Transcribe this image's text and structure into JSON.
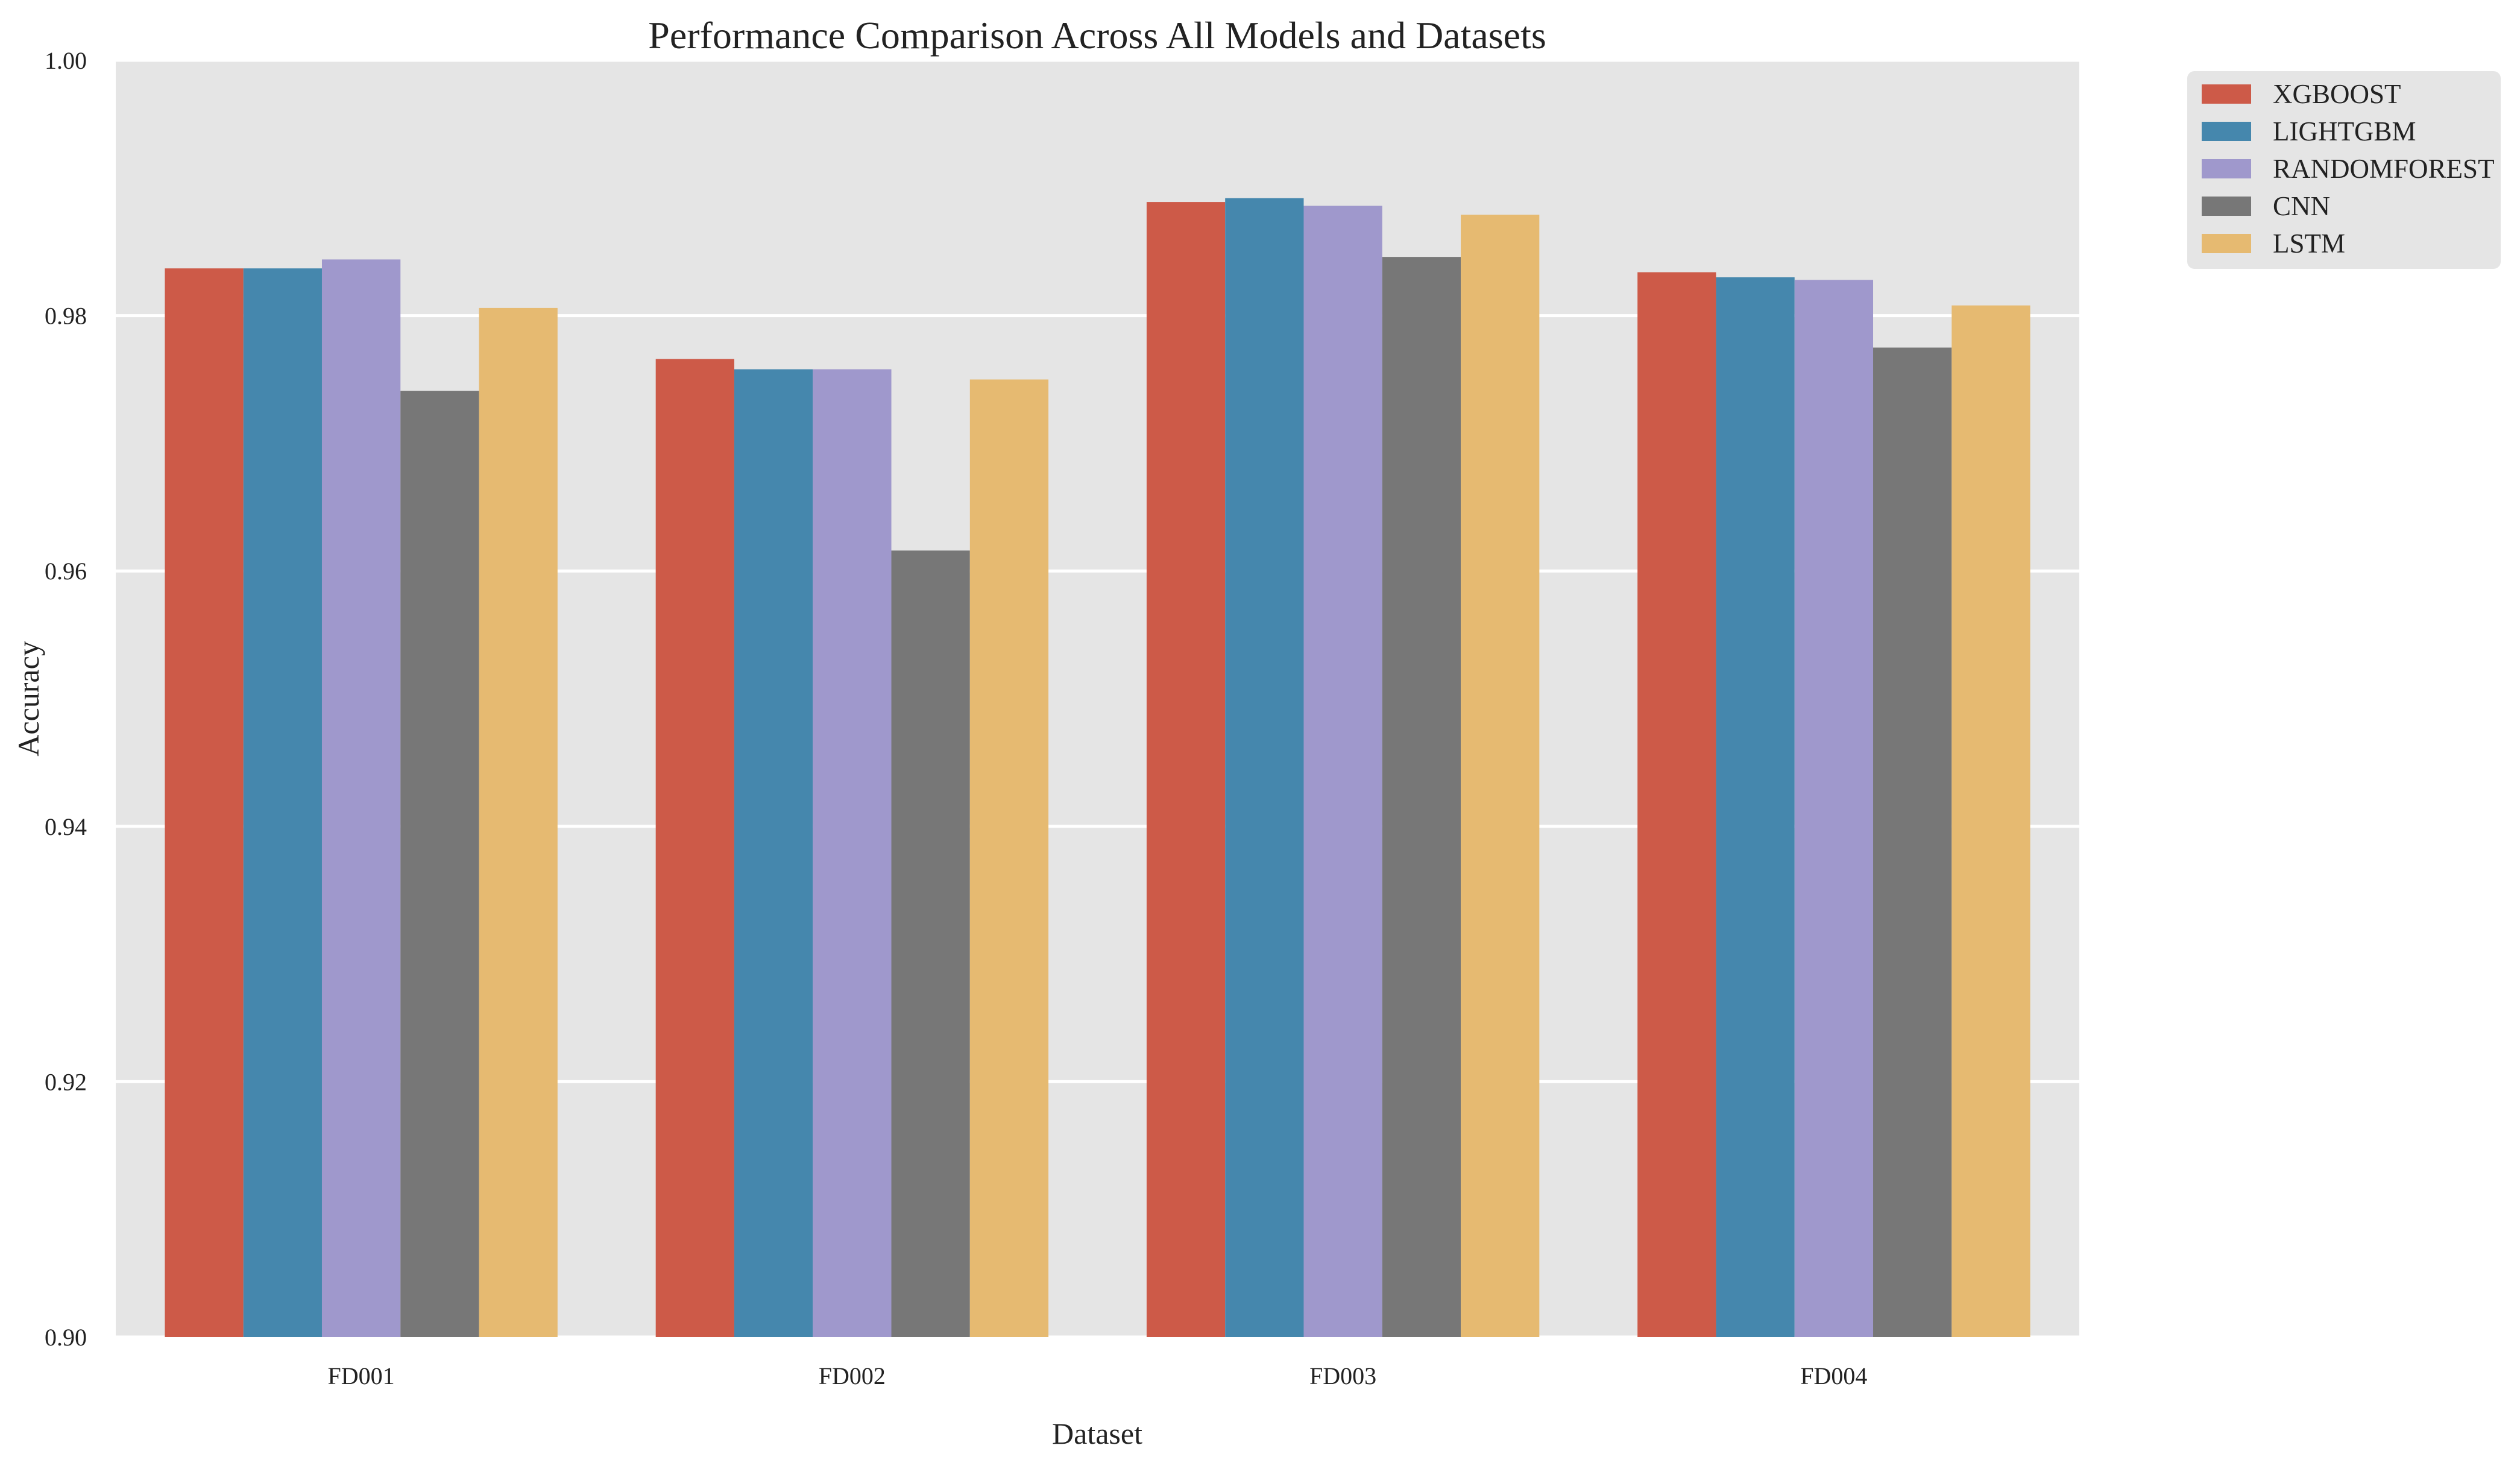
{
  "chart_data": {
    "type": "bar",
    "title": "Performance Comparison Across All Models and Datasets",
    "xlabel": "Dataset",
    "ylabel": "Accuracy",
    "categories": [
      "FD001",
      "FD002",
      "FD003",
      "FD004"
    ],
    "ylim": [
      0.9,
      1.0
    ],
    "yticks": [
      "0.90",
      "0.92",
      "0.94",
      "0.96",
      "0.98",
      "1.00"
    ],
    "grid": true,
    "legend_position": "outside top-right",
    "background": "#e5e5e5",
    "series": [
      {
        "name": "XGBOOST",
        "color": "#cd5a48",
        "values": [
          0.9837,
          0.9766,
          0.9889,
          0.9834
        ]
      },
      {
        "name": "LIGHTGBM",
        "color": "#4587ad",
        "values": [
          0.9837,
          0.9758,
          0.9892,
          0.983
        ]
      },
      {
        "name": "RANDOMFOREST",
        "color": "#9f98cc",
        "values": [
          0.9844,
          0.9758,
          0.9886,
          0.9828
        ]
      },
      {
        "name": "CNN",
        "color": "#777777",
        "values": [
          0.9741,
          0.9616,
          0.9846,
          0.9775
        ]
      },
      {
        "name": "LSTM",
        "color": "#e6ba71",
        "values": [
          0.9806,
          0.975,
          0.9879,
          0.9808
        ]
      }
    ]
  }
}
